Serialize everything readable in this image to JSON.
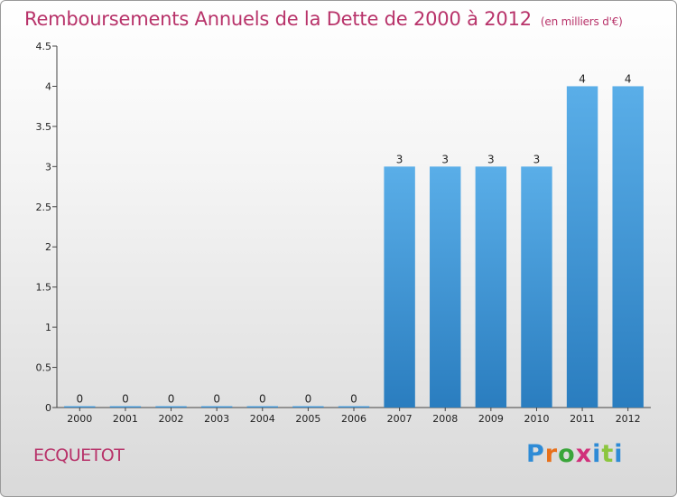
{
  "header": {
    "title": "Remboursements Annuels de la Dette de 2000 à 2012",
    "unit": "(en milliers d'€)"
  },
  "footer": {
    "commune": "ECQUETOT",
    "logo_text": "Proxiti",
    "logo_colors": [
      "#2e8bd6",
      "#e8701a",
      "#3aa53a",
      "#d12f7a",
      "#2e8bd6",
      "#8cc63f",
      "#2e8bd6"
    ]
  },
  "colors": {
    "bar_top": "#5aaee8",
    "bar_bottom": "#2a7dbf",
    "title": "#b8336a"
  },
  "chart_data": {
    "type": "bar",
    "title": "Remboursements Annuels de la Dette de 2000 à 2012",
    "subtitle": "(en milliers d'€)",
    "categories": [
      "2000",
      "2001",
      "2002",
      "2003",
      "2004",
      "2005",
      "2006",
      "2007",
      "2008",
      "2009",
      "2010",
      "2011",
      "2012"
    ],
    "values": [
      0,
      0,
      0,
      0,
      0,
      0,
      0,
      3,
      3,
      3,
      3,
      4,
      4
    ],
    "value_labels": [
      "0",
      "0",
      "0",
      "0",
      "0",
      "0",
      "0",
      "3",
      "3",
      "3",
      "3",
      "4",
      "4"
    ],
    "ylim": [
      0,
      4.5
    ],
    "yticks": [
      0,
      0.5,
      1,
      1.5,
      2,
      2.5,
      3,
      3.5,
      4,
      4.5
    ],
    "ytick_labels": [
      "0",
      "0.5",
      "1",
      "1.5",
      "2",
      "2.5",
      "3",
      "3.5",
      "4",
      "4.5"
    ],
    "grid": false,
    "legend": "none"
  }
}
